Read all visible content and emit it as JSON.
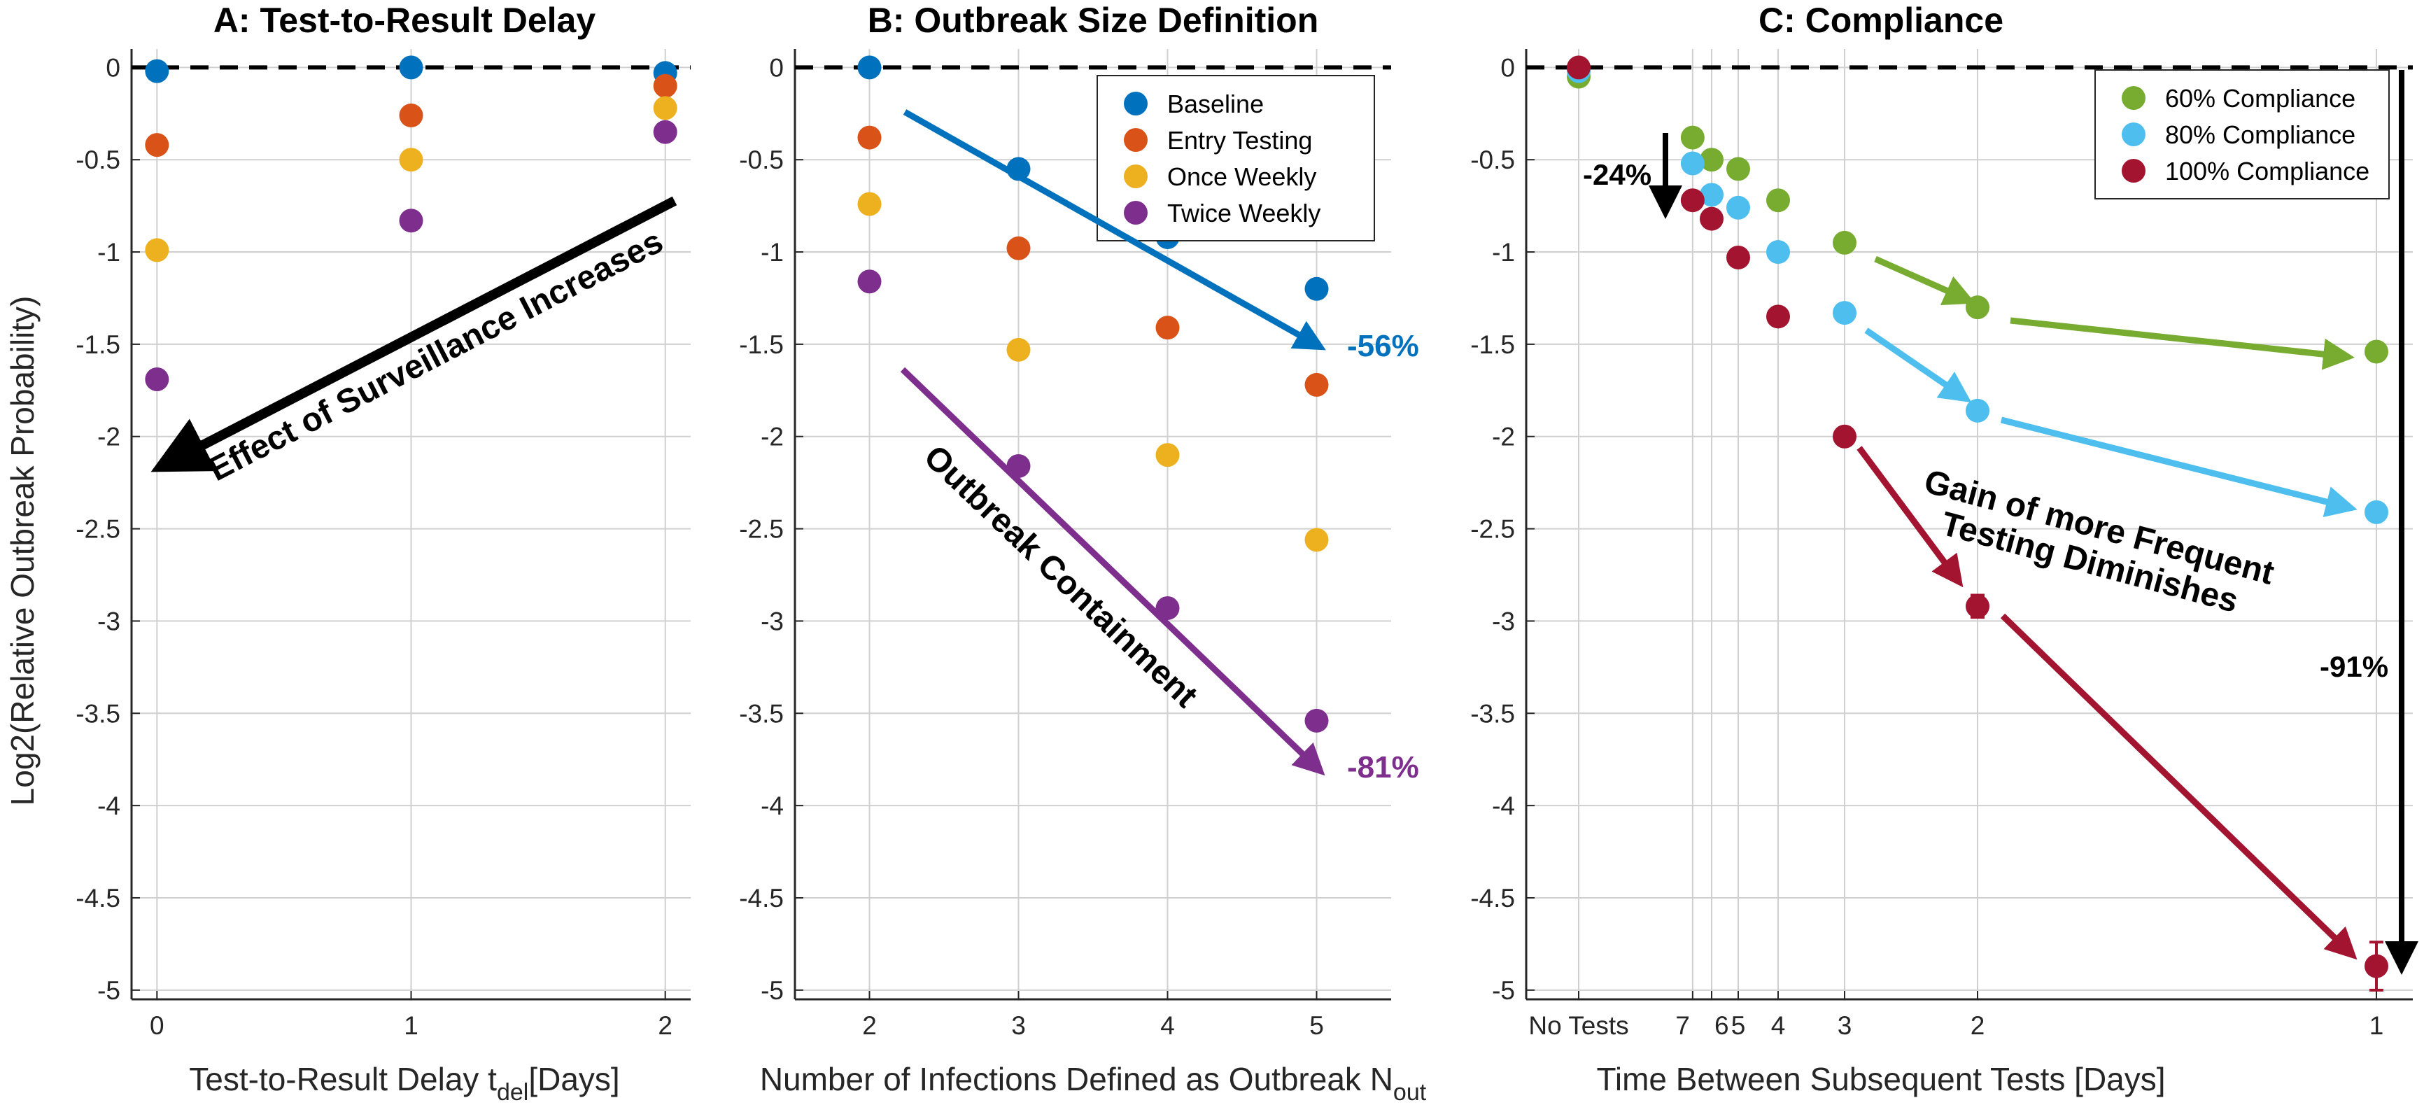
{
  "figure": {
    "ylabel": "Log2(Relative Outbreak Probability)",
    "colors": {
      "baseline": "#0072BD",
      "entry": "#D95319",
      "once": "#EDB120",
      "twice": "#7E2F8E",
      "c60": "#77AC30",
      "c80": "#4DBEEE",
      "c100": "#A2142F"
    }
  },
  "chart_data": [
    {
      "id": "A",
      "type": "scatter",
      "title": "A: Test-to-Result Delay",
      "xlabel_main": "Test-to-Result Delay t",
      "xlabel_sub": "del",
      "xlabel_tail": "[Days]",
      "xticks": [
        "0",
        "1",
        "2"
      ],
      "x": [
        0,
        1,
        2
      ],
      "xlim": [
        -0.1,
        2.1
      ],
      "ylim": [
        -5.05,
        0.1
      ],
      "yticks": [
        "0",
        "-0.5",
        "-1",
        "-1.5",
        "-2",
        "-2.5",
        "-3",
        "-3.5",
        "-4",
        "-4.5",
        "-5"
      ],
      "series": [
        {
          "name": "Baseline",
          "color": "#0072BD",
          "values": [
            -0.02,
            0,
            -0.03
          ]
        },
        {
          "name": "Entry Testing",
          "color": "#D95319",
          "values": [
            -0.42,
            -0.26,
            -0.1
          ]
        },
        {
          "name": "Once Weekly",
          "color": "#EDB120",
          "values": [
            -0.99,
            -0.5,
            -0.22
          ]
        },
        {
          "name": "Twice Weekly",
          "color": "#7E2F8E",
          "values": [
            -1.69,
            -0.83,
            -0.35
          ]
        }
      ],
      "annotations": [
        {
          "text": "Effect of Surveillance Increases"
        }
      ]
    },
    {
      "id": "B",
      "type": "scatter",
      "title": "B: Outbreak Size Definition",
      "xlabel_main": "Number of Infections Defined as Outbreak N",
      "xlabel_sub": "out",
      "xticks": [
        "2",
        "3",
        "4",
        "5"
      ],
      "x": [
        2,
        3,
        4,
        5
      ],
      "xlim": [
        1.5,
        5.5
      ],
      "ylim": [
        -5.05,
        0.1
      ],
      "yticks": [
        "0",
        "-0.5",
        "-1",
        "-1.5",
        "-2",
        "-2.5",
        "-3",
        "-3.5",
        "-4",
        "-4.5",
        "-5"
      ],
      "legend": {
        "position": "top-right",
        "entries": [
          "Baseline",
          "Entry Testing",
          "Once Weekly",
          "Twice Weekly"
        ]
      },
      "series": [
        {
          "name": "Baseline",
          "color": "#0072BD",
          "values": [
            0,
            -0.55,
            -0.92,
            -1.2
          ]
        },
        {
          "name": "Entry Testing",
          "color": "#D95319",
          "values": [
            -0.38,
            -0.98,
            -1.41,
            -1.72
          ]
        },
        {
          "name": "Once Weekly",
          "color": "#EDB120",
          "values": [
            -0.74,
            -1.53,
            -2.1,
            -2.56
          ]
        },
        {
          "name": "Twice Weekly",
          "color": "#7E2F8E",
          "values": [
            -1.16,
            -2.16,
            -2.93,
            -3.54
          ]
        }
      ],
      "annotations": [
        {
          "text": "-56%",
          "color": "#0072BD"
        },
        {
          "text": "-81%",
          "color": "#7E2F8E"
        },
        {
          "text": "Outbreak Containment"
        }
      ]
    },
    {
      "id": "C",
      "type": "scatter",
      "title": "C: Compliance",
      "xlabel": "Time Between Subsequent Tests [Days]",
      "xticks": [
        "No Tests",
        "7",
        "6",
        "5",
        "4",
        "3",
        "2",
        "1"
      ],
      "xtick_positions": [
        0,
        7,
        6,
        5,
        4,
        3,
        2,
        1
      ],
      "x_scale": "reciprocal",
      "ylim": [
        -5.05,
        0.1
      ],
      "yticks": [
        "0",
        "-0.5",
        "-1",
        "-1.5",
        "-2",
        "-2.5",
        "-3",
        "-3.5",
        "-4",
        "-4.5",
        "-5"
      ],
      "legend": {
        "position": "top-right",
        "entries": [
          "60% Compliance",
          "80% Compliance",
          "100% Compliance"
        ]
      },
      "series": [
        {
          "name": "60% Compliance",
          "color": "#77AC30",
          "x": [
            0,
            7,
            6,
            5,
            4,
            3,
            2,
            1
          ],
          "values": [
            -0.05,
            -0.38,
            -0.5,
            -0.55,
            -0.72,
            -0.95,
            -1.3,
            -1.54
          ]
        },
        {
          "name": "80% Compliance",
          "color": "#4DBEEE",
          "x": [
            0,
            7,
            6,
            5,
            4,
            3,
            2,
            1
          ],
          "values": [
            -0.02,
            -0.52,
            -0.69,
            -0.76,
            -1.0,
            -1.33,
            -1.86,
            -2.41
          ]
        },
        {
          "name": "100% Compliance",
          "color": "#A2142F",
          "x": [
            0,
            7,
            6,
            5,
            4,
            3,
            2,
            1
          ],
          "values": [
            0,
            -0.72,
            -0.82,
            -1.03,
            -1.35,
            -2.0,
            -2.92,
            -4.87
          ],
          "errors": [
            0,
            0,
            0,
            0,
            0,
            0,
            0.06,
            0.13
          ]
        }
      ],
      "annotations": [
        {
          "text": "-24%"
        },
        {
          "text": "-91%"
        },
        {
          "text": "Gain of more Frequent"
        },
        {
          "text": "Testing Diminishes"
        }
      ]
    }
  ]
}
